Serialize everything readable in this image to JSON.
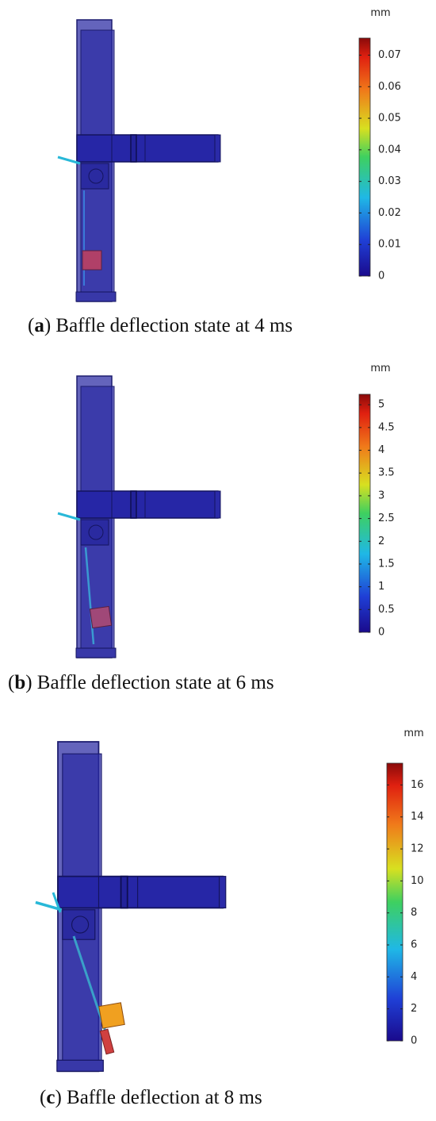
{
  "panels": [
    {
      "unit": "mm",
      "colorbar": {
        "lim": [
          0,
          0.0754
        ],
        "ticks": [
          0,
          0.01,
          0.02,
          0.03,
          0.04,
          0.05,
          0.06,
          0.07
        ]
      },
      "caption": {
        "open": "(",
        "label": "a",
        "text": ") Baffle deflection state at 4 ms"
      }
    },
    {
      "unit": "mm",
      "colorbar": {
        "lim": [
          0,
          5.23
        ],
        "ticks": [
          0,
          0.5,
          1,
          1.5,
          2,
          2.5,
          3,
          3.5,
          4,
          4.5,
          5
        ]
      },
      "caption": {
        "open": "(",
        "label": "b",
        "text": ") Baffle deflection state at 6 ms"
      }
    },
    {
      "unit": "mm",
      "colorbar": {
        "lim": [
          0,
          17.36
        ],
        "ticks": [
          0,
          2,
          4,
          6,
          8,
          10,
          12,
          14,
          16
        ]
      },
      "caption": {
        "open": "(",
        "label": "c",
        "text": ") Baffle deflection at 8 ms"
      }
    }
  ]
}
